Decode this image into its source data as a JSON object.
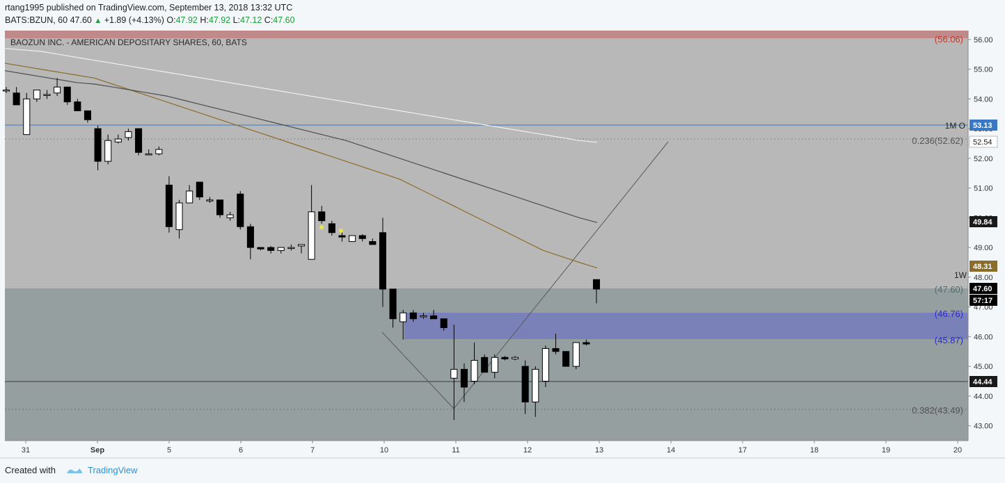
{
  "header": {
    "published_line": "rtang1995 published on TradingView.com, September 13, 2018 13:32 UTC",
    "symbol": "BATS:BZUN, 60",
    "last": "47.60",
    "change": "+1.89 (+4.13%)",
    "o_label": "O:",
    "o_value": "47.92",
    "h_label": "H:",
    "h_value": "47.92",
    "l_label": "L:",
    "l_value": "47.12",
    "c_label": "C:",
    "c_value": "47.60"
  },
  "footer": {
    "created_with": "Created with",
    "brand": "TradingView"
  },
  "chart_data": {
    "type": "candlestick",
    "title": "BAOZUN INC. - AMERICAN DEPOSITARY SHARES, 60, BATS",
    "ylim": [
      42.5,
      56.3
    ],
    "y_ticks": [
      "56.00",
      "55.00",
      "54.00",
      "53.00",
      "52.00",
      "51.00",
      "50.00",
      "49.00",
      "48.00",
      "47.00",
      "46.00",
      "45.00",
      "44.00",
      "43.00"
    ],
    "x_tick_labels": [
      "31",
      "Sep",
      "5",
      "6",
      "7",
      "10",
      "11",
      "12",
      "13",
      "14",
      "17",
      "18",
      "19",
      "20"
    ],
    "candles": [
      {
        "o": 54.3,
        "h": 54.4,
        "l": 54.2,
        "c": 54.3
      },
      {
        "o": 54.2,
        "h": 54.4,
        "l": 53.9,
        "c": 53.8
      },
      {
        "o": 52.8,
        "h": 54.2,
        "l": 52.8,
        "c": 54.0
      },
      {
        "o": 54.0,
        "h": 54.3,
        "l": 53.9,
        "c": 54.3
      },
      {
        "o": 54.15,
        "h": 54.3,
        "l": 54.0,
        "c": 54.15
      },
      {
        "o": 54.2,
        "h": 54.7,
        "l": 54.1,
        "c": 54.4
      },
      {
        "o": 54.4,
        "h": 54.4,
        "l": 53.8,
        "c": 53.9
      },
      {
        "o": 53.9,
        "h": 54.0,
        "l": 53.6,
        "c": 53.6
      },
      {
        "o": 53.6,
        "h": 53.6,
        "l": 53.2,
        "c": 53.3
      },
      {
        "o": 53.0,
        "h": 53.1,
        "l": 51.6,
        "c": 51.9
      },
      {
        "o": 51.9,
        "h": 52.8,
        "l": 51.8,
        "c": 52.6
      },
      {
        "o": 52.55,
        "h": 52.8,
        "l": 52.5,
        "c": 52.65
      },
      {
        "o": 52.7,
        "h": 53.0,
        "l": 52.6,
        "c": 52.9
      },
      {
        "o": 53.0,
        "h": 53.0,
        "l": 52.1,
        "c": 52.2
      },
      {
        "o": 52.15,
        "h": 52.3,
        "l": 52.1,
        "c": 52.15
      },
      {
        "o": 52.15,
        "h": 52.4,
        "l": 52.1,
        "c": 52.3
      },
      {
        "o": 51.1,
        "h": 51.4,
        "l": 49.5,
        "c": 49.7
      },
      {
        "o": 49.6,
        "h": 50.6,
        "l": 49.3,
        "c": 50.5
      },
      {
        "o": 50.5,
        "h": 51.1,
        "l": 50.5,
        "c": 50.9
      },
      {
        "o": 51.2,
        "h": 51.2,
        "l": 50.6,
        "c": 50.7
      },
      {
        "o": 50.6,
        "h": 50.7,
        "l": 50.5,
        "c": 50.6
      },
      {
        "o": 50.6,
        "h": 50.6,
        "l": 50.0,
        "c": 50.1
      },
      {
        "o": 50.0,
        "h": 50.2,
        "l": 49.9,
        "c": 50.1
      },
      {
        "o": 50.8,
        "h": 50.9,
        "l": 49.6,
        "c": 49.7
      },
      {
        "o": 49.7,
        "h": 49.8,
        "l": 48.6,
        "c": 49.0
      },
      {
        "o": 49.0,
        "h": 49.0,
        "l": 48.9,
        "c": 48.95
      },
      {
        "o": 49.0,
        "h": 49.05,
        "l": 48.8,
        "c": 48.9
      },
      {
        "o": 48.9,
        "h": 49.0,
        "l": 48.8,
        "c": 49.0
      },
      {
        "o": 49.0,
        "h": 49.1,
        "l": 48.9,
        "c": 49.0
      },
      {
        "o": 49.05,
        "h": 49.1,
        "l": 48.8,
        "c": 49.1
      },
      {
        "o": 48.6,
        "h": 51.1,
        "l": 48.6,
        "c": 50.2
      },
      {
        "o": 50.2,
        "h": 50.4,
        "l": 49.8,
        "c": 49.9
      },
      {
        "o": 49.8,
        "h": 49.9,
        "l": 49.4,
        "c": 49.5
      },
      {
        "o": 49.4,
        "h": 49.6,
        "l": 49.2,
        "c": 49.35
      },
      {
        "o": 49.2,
        "h": 49.4,
        "l": 49.2,
        "c": 49.4
      },
      {
        "o": 49.4,
        "h": 49.45,
        "l": 49.2,
        "c": 49.3
      },
      {
        "o": 49.2,
        "h": 49.3,
        "l": 49.1,
        "c": 49.1
      },
      {
        "o": 49.5,
        "h": 50.0,
        "l": 47.0,
        "c": 47.6
      },
      {
        "o": 47.6,
        "h": 47.6,
        "l": 46.3,
        "c": 46.6
      },
      {
        "o": 46.5,
        "h": 46.9,
        "l": 45.9,
        "c": 46.8
      },
      {
        "o": 46.8,
        "h": 46.9,
        "l": 46.5,
        "c": 46.6
      },
      {
        "o": 46.7,
        "h": 46.8,
        "l": 46.6,
        "c": 46.7
      },
      {
        "o": 46.7,
        "h": 46.9,
        "l": 46.6,
        "c": 46.6
      },
      {
        "o": 46.6,
        "h": 46.6,
        "l": 46.2,
        "c": 46.3
      },
      {
        "o": 44.6,
        "h": 46.4,
        "l": 43.2,
        "c": 44.9
      },
      {
        "o": 44.9,
        "h": 45.1,
        "l": 43.8,
        "c": 44.3
      },
      {
        "o": 44.5,
        "h": 45.8,
        "l": 44.4,
        "c": 45.2
      },
      {
        "o": 45.3,
        "h": 45.4,
        "l": 44.8,
        "c": 44.8
      },
      {
        "o": 44.8,
        "h": 45.4,
        "l": 44.6,
        "c": 45.3
      },
      {
        "o": 45.3,
        "h": 45.35,
        "l": 45.2,
        "c": 45.25
      },
      {
        "o": 45.25,
        "h": 45.35,
        "l": 45.2,
        "c": 45.3
      },
      {
        "o": 45.0,
        "h": 45.2,
        "l": 43.4,
        "c": 43.8
      },
      {
        "o": 43.8,
        "h": 45.0,
        "l": 43.3,
        "c": 44.9
      },
      {
        "o": 44.5,
        "h": 45.7,
        "l": 44.3,
        "c": 45.6
      },
      {
        "o": 45.6,
        "h": 46.1,
        "l": 45.4,
        "c": 45.5
      },
      {
        "o": 45.5,
        "h": 45.5,
        "l": 45.0,
        "c": 45.0
      },
      {
        "o": 45.0,
        "h": 45.8,
        "l": 44.9,
        "c": 45.8
      },
      {
        "o": 45.8,
        "h": 45.9,
        "l": 45.7,
        "c": 45.75
      },
      {
        "o": 47.92,
        "h": 47.92,
        "l": 47.12,
        "c": 47.6
      }
    ],
    "moving_averages": [
      {
        "color": "#8a6d2b",
        "values": [
          55.2,
          55.1,
          55.0,
          54.9,
          54.8,
          54.7,
          54.5,
          54.3,
          54.1,
          53.9,
          53.7,
          53.5,
          53.3,
          53.1,
          52.9,
          52.7,
          52.5,
          52.3,
          52.1,
          51.9,
          51.7,
          51.5,
          51.3,
          51.0,
          50.7,
          50.4,
          50.1,
          49.8,
          49.5,
          49.2,
          48.9,
          48.7,
          48.5,
          48.31
        ]
      },
      {
        "color": "#4d4d4d",
        "values": [
          54.95,
          54.85,
          54.75,
          54.65,
          54.55,
          54.5,
          54.4,
          54.3,
          54.2,
          54.1,
          53.95,
          53.8,
          53.65,
          53.5,
          53.35,
          53.2,
          53.05,
          52.9,
          52.75,
          52.6,
          52.4,
          52.2,
          52.0,
          51.8,
          51.6,
          51.4,
          51.2,
          51.0,
          50.8,
          50.6,
          50.4,
          50.2,
          50.0,
          49.84
        ]
      },
      {
        "color": "#f0f0f0",
        "values": [
          55.7,
          55.65,
          55.6,
          55.5,
          55.4,
          55.3,
          55.2,
          55.1,
          55.0,
          54.9,
          54.8,
          54.7,
          54.6,
          54.5,
          54.4,
          54.3,
          54.2,
          54.1,
          54.0,
          53.9,
          53.8,
          53.7,
          53.6,
          53.5,
          53.4,
          53.3,
          53.2,
          53.1,
          53.0,
          52.9,
          52.8,
          52.7,
          52.6,
          52.54
        ]
      }
    ],
    "levels": {
      "resistance_label": "(56.06)",
      "monthly_open_label": "1M O",
      "monthly_open_value": "53.13",
      "fib236_label": "0.236(52.62)",
      "ma_white_value": "52.54",
      "ma_dark_value": "49.84",
      "ma_gold_value": "48.31",
      "weekly_label": "1W",
      "weekly_open_label": "(47.60)",
      "last_price_value": "47.60",
      "countdown_value": "57:17",
      "zone_top_label": "(46.76)",
      "zone_bottom_label": "(45.87)",
      "support_value": "44.44",
      "fib382_label": "0.382(43.49)"
    },
    "colors": {
      "up_candle": "#ffffff",
      "down_candle": "#000000",
      "upper_zone": "#b8b8b8",
      "lower_zone": "#959f9f",
      "demand_zone": "#7a80b8",
      "resistance_band": "#c08a8a",
      "monthly_open_line": "#3a78c4"
    }
  }
}
